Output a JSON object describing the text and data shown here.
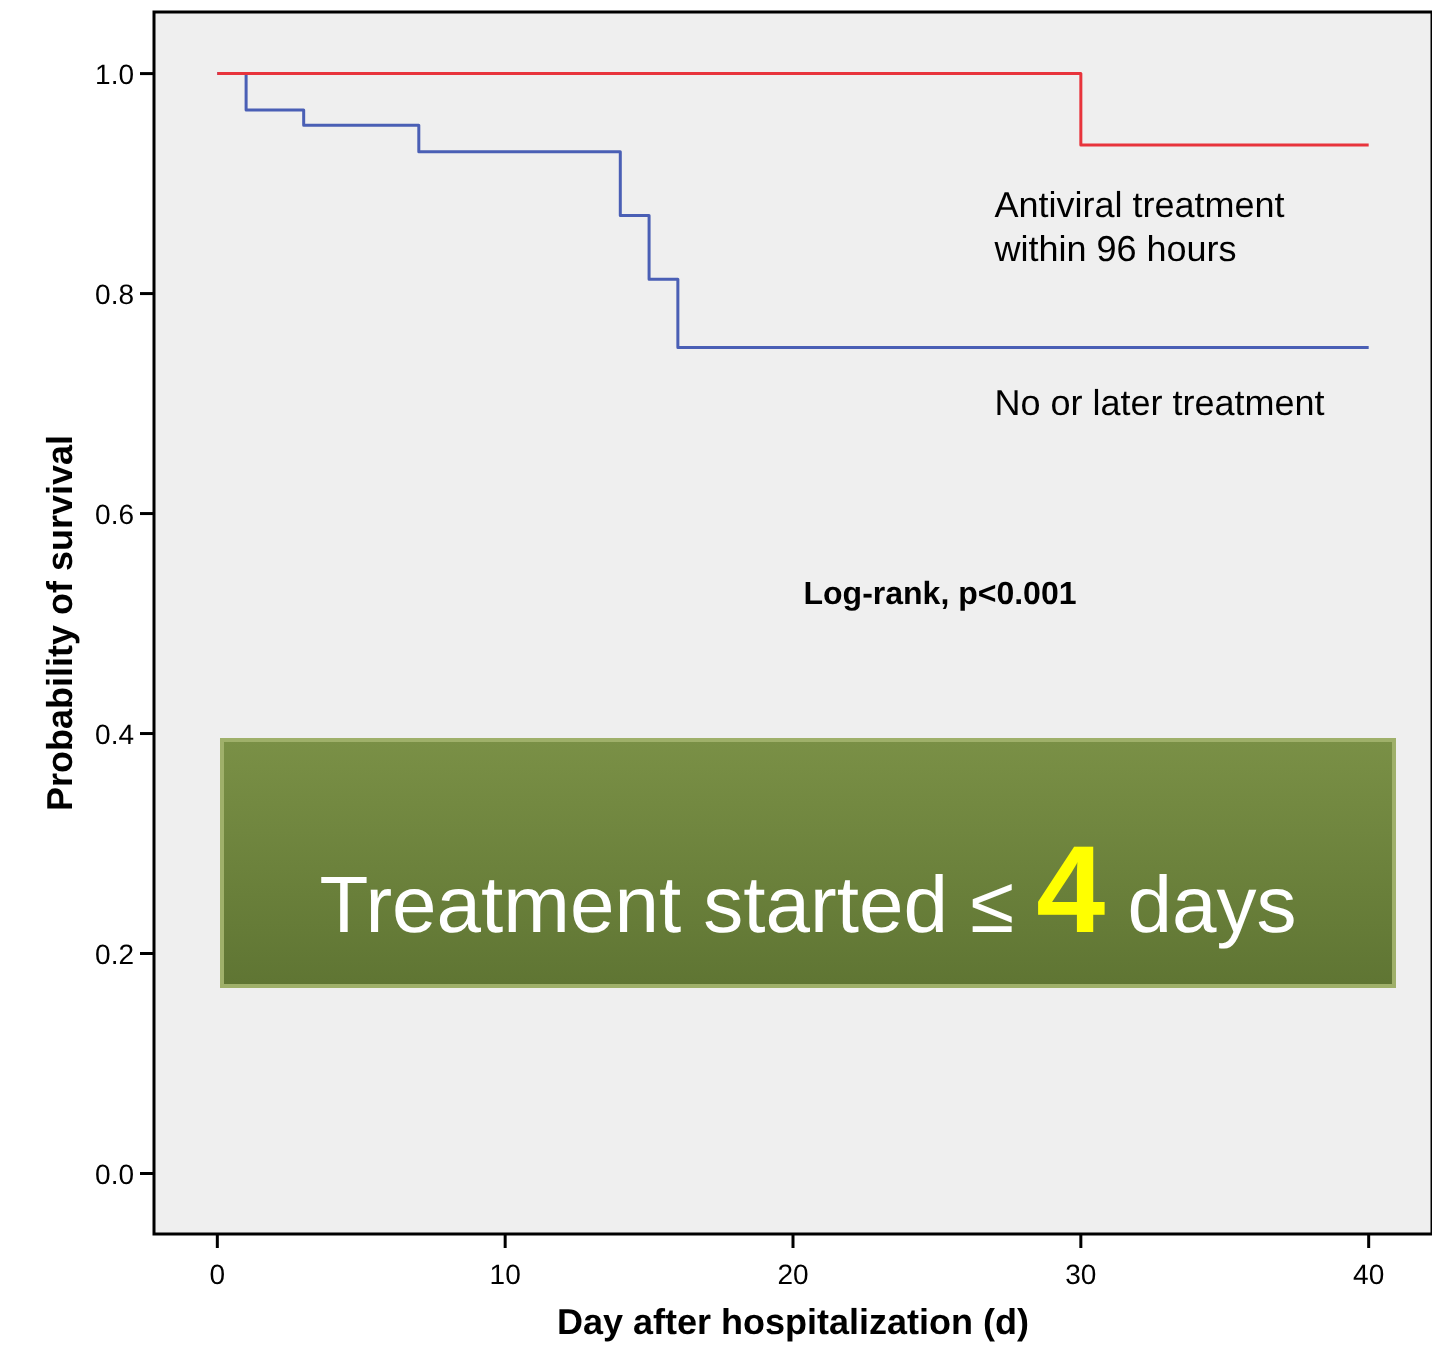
{
  "chart_data": {
    "type": "step",
    "xlabel": "Day after hospitalization (d)",
    "ylabel": "Probability of survival",
    "xlim": [
      -2.2,
      42.2
    ],
    "ylim": [
      -0.055,
      1.056
    ],
    "xticks": [
      0,
      10,
      20,
      30,
      40
    ],
    "yticks": [
      {
        "value": 0,
        "label": "0.0"
      },
      {
        "value": 0.2,
        "label": "0.2"
      },
      {
        "value": 0.4,
        "label": "0.4"
      },
      {
        "value": 0.6,
        "label": "0.6"
      },
      {
        "value": 0.8,
        "label": "0.8"
      },
      {
        "value": 1,
        "label": "1.0"
      }
    ],
    "series": [
      {
        "name": "No or later treatment",
        "color": "#4a5fb5",
        "x": [
          0,
          1,
          3,
          7,
          14,
          15,
          16,
          40
        ],
        "values": [
          1,
          0.967,
          0.953,
          0.929,
          0.871,
          0.813,
          0.751,
          0.751
        ]
      },
      {
        "name": "Antiviral treatment\nwithin 96 hours",
        "color": "#e8343c",
        "x": [
          0,
          30,
          40
        ],
        "values": [
          1,
          0.935,
          0.935
        ]
      }
    ],
    "annotations": [
      "Log-rank, p<0.001",
      "Treatment started ≤ 4 days"
    ],
    "grid": false
  }
}
